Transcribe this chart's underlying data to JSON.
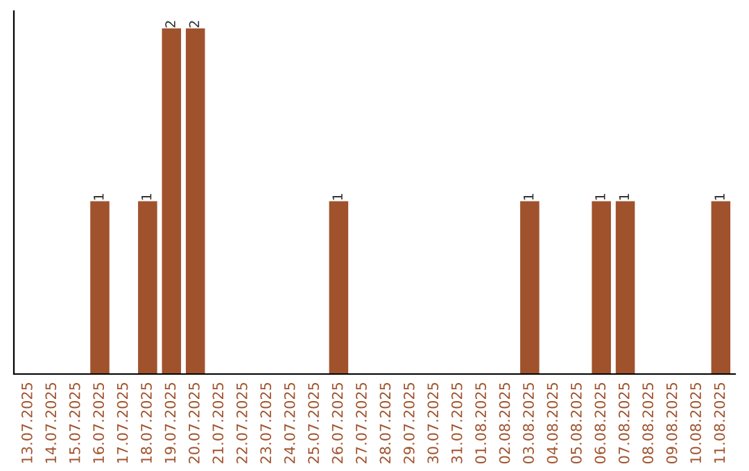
{
  "chart_data": {
    "type": "bar",
    "color": "#a0522d",
    "categories": [
      "13.07.2025",
      "14.07.2025",
      "15.07.2025",
      "16.07.2025",
      "17.07.2025",
      "18.07.2025",
      "19.07.2025",
      "20.07.2025",
      "21.07.2025",
      "22.07.2025",
      "23.07.2025",
      "24.07.2025",
      "25.07.2025",
      "26.07.2025",
      "27.07.2025",
      "28.07.2025",
      "29.07.2025",
      "30.07.2025",
      "31.07.2025",
      "01.08.2025",
      "02.08.2025",
      "03.08.2025",
      "04.08.2025",
      "05.08.2025",
      "06.08.2025",
      "07.08.2025",
      "08.08.2025",
      "09.08.2025",
      "10.08.2025",
      "11.08.2025"
    ],
    "values": [
      0,
      0,
      0,
      1,
      0,
      1,
      2,
      2,
      0,
      0,
      0,
      0,
      0,
      1,
      0,
      0,
      0,
      0,
      0,
      0,
      0,
      1,
      0,
      0,
      1,
      1,
      0,
      0,
      0,
      1
    ],
    "value_labels": [
      null,
      null,
      null,
      "1",
      null,
      "1",
      "2",
      "2",
      null,
      null,
      null,
      null,
      null,
      "1",
      null,
      null,
      null,
      null,
      null,
      null,
      null,
      "1",
      null,
      null,
      "1",
      "1",
      null,
      null,
      null,
      "1"
    ],
    "tick_labels": "x",
    "grid": false,
    "legend": false
  }
}
